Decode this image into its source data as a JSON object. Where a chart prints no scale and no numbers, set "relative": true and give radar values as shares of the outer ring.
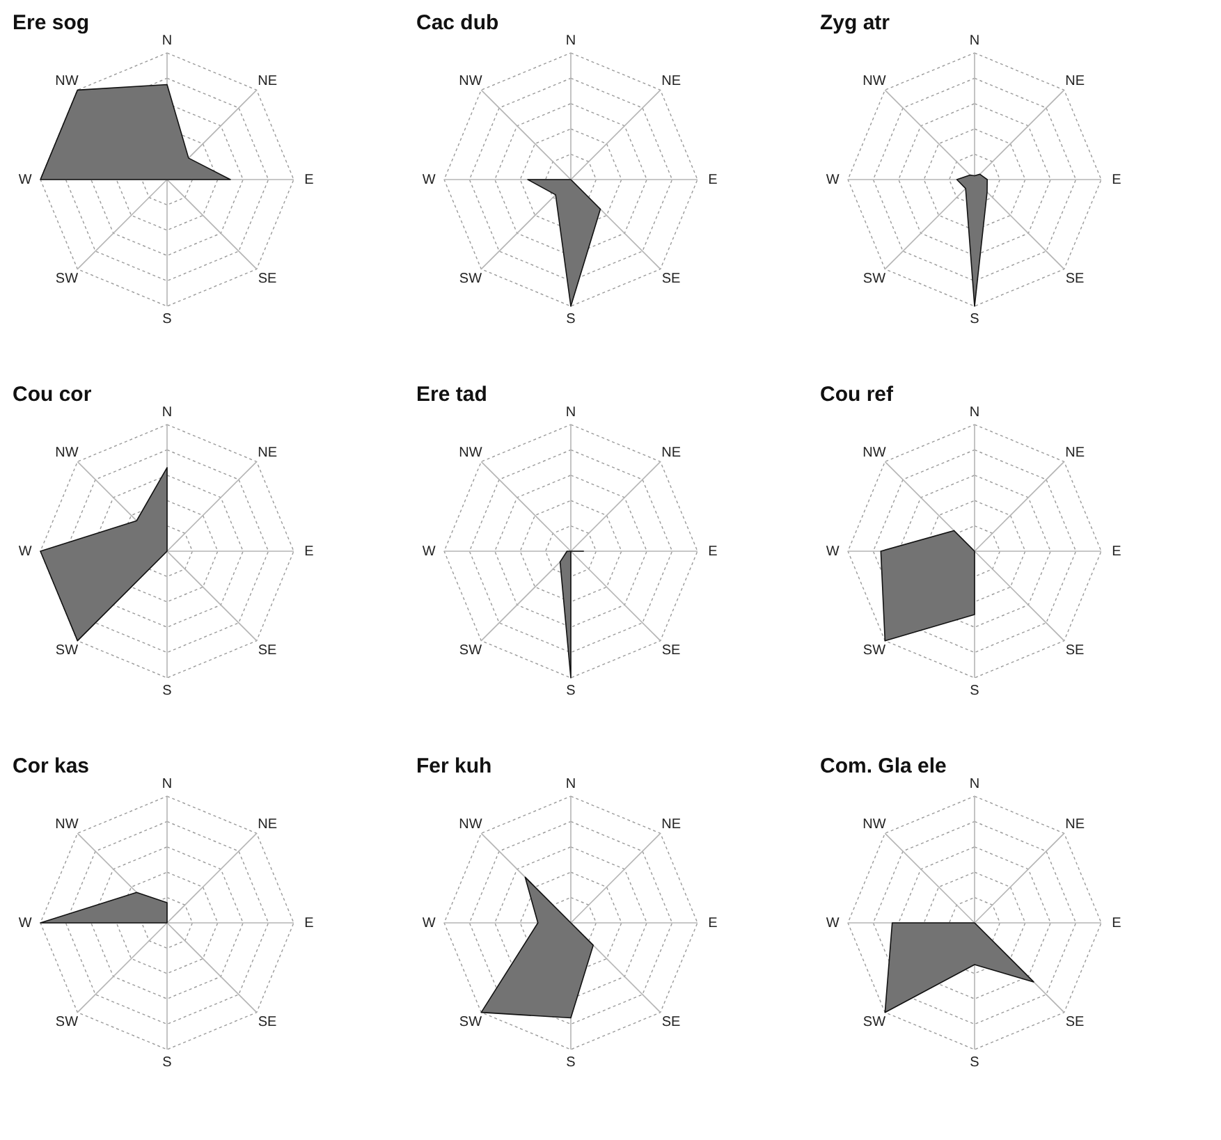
{
  "chart_data": [
    {
      "type": "radar",
      "title": "Ere sog",
      "categories": [
        "N",
        "NE",
        "E",
        "SE",
        "S",
        "SW",
        "W",
        "NW"
      ],
      "relative": true,
      "grid": true,
      "series": [
        {
          "color": "#737373",
          "values": [
            0.75,
            0.24,
            0.5,
            0,
            0,
            0,
            1,
            1
          ]
        }
      ]
    },
    {
      "type": "radar",
      "title": "Cac dub",
      "categories": [
        "N",
        "NE",
        "E",
        "SE",
        "S",
        "SW",
        "W",
        "NW"
      ],
      "relative": true,
      "grid": true,
      "series": [
        {
          "color": "#737373",
          "values": [
            0,
            0,
            0,
            0.33,
            1,
            0.17,
            0.34,
            0
          ]
        }
      ]
    },
    {
      "type": "radar",
      "title": "Zyg atr",
      "categories": [
        "N",
        "NE",
        "E",
        "SE",
        "S",
        "SW",
        "W",
        "NW"
      ],
      "relative": true,
      "grid": true,
      "series": [
        {
          "color": "#737373",
          "values": [
            0.03,
            0.06,
            0.1,
            0.14,
            1,
            0.1,
            0.14,
            0.05
          ]
        }
      ]
    },
    {
      "type": "radar",
      "title": "Cou cor",
      "categories": [
        "N",
        "NE",
        "E",
        "SE",
        "S",
        "SW",
        "W",
        "NW"
      ],
      "relative": true,
      "grid": true,
      "series": [
        {
          "color": "#737373",
          "values": [
            0.66,
            0,
            0,
            0,
            0,
            1,
            1,
            0.34
          ]
        }
      ]
    },
    {
      "type": "radar",
      "title": "Ere tad",
      "categories": [
        "N",
        "NE",
        "E",
        "SE",
        "S",
        "SW",
        "W",
        "NW"
      ],
      "relative": true,
      "grid": true,
      "series": [
        {
          "color": "#737373",
          "values": [
            0,
            0,
            0.1,
            0,
            1,
            0.12,
            0.03,
            0
          ]
        }
      ]
    },
    {
      "type": "radar",
      "title": "Cou ref",
      "categories": [
        "N",
        "NE",
        "E",
        "SE",
        "S",
        "SW",
        "W",
        "NW"
      ],
      "relative": true,
      "grid": true,
      "series": [
        {
          "color": "#737373",
          "values": [
            0,
            0,
            0,
            0,
            0.5,
            1,
            0.74,
            0.23
          ]
        }
      ]
    },
    {
      "type": "radar",
      "title": "Cor kas",
      "categories": [
        "N",
        "NE",
        "E",
        "SE",
        "S",
        "SW",
        "W",
        "NW"
      ],
      "relative": true,
      "grid": true,
      "series": [
        {
          "color": "#737373",
          "values": [
            0.16,
            0,
            0,
            0,
            0,
            0,
            1,
            0.34
          ]
        }
      ]
    },
    {
      "type": "radar",
      "title": "Fer kuh",
      "categories": [
        "N",
        "NE",
        "E",
        "SE",
        "S",
        "SW",
        "W",
        "NW"
      ],
      "relative": true,
      "grid": true,
      "series": [
        {
          "color": "#737373",
          "values": [
            0,
            0,
            0,
            0.25,
            0.75,
            1,
            0.26,
            0.51
          ]
        }
      ]
    },
    {
      "type": "radar",
      "title": "Com. Gla ele",
      "categories": [
        "N",
        "NE",
        "E",
        "SE",
        "S",
        "SW",
        "W",
        "NW"
      ],
      "relative": true,
      "grid": true,
      "series": [
        {
          "color": "#737373",
          "values": [
            0,
            0,
            0,
            0.66,
            0.33,
            1,
            0.65,
            0
          ]
        }
      ]
    }
  ]
}
